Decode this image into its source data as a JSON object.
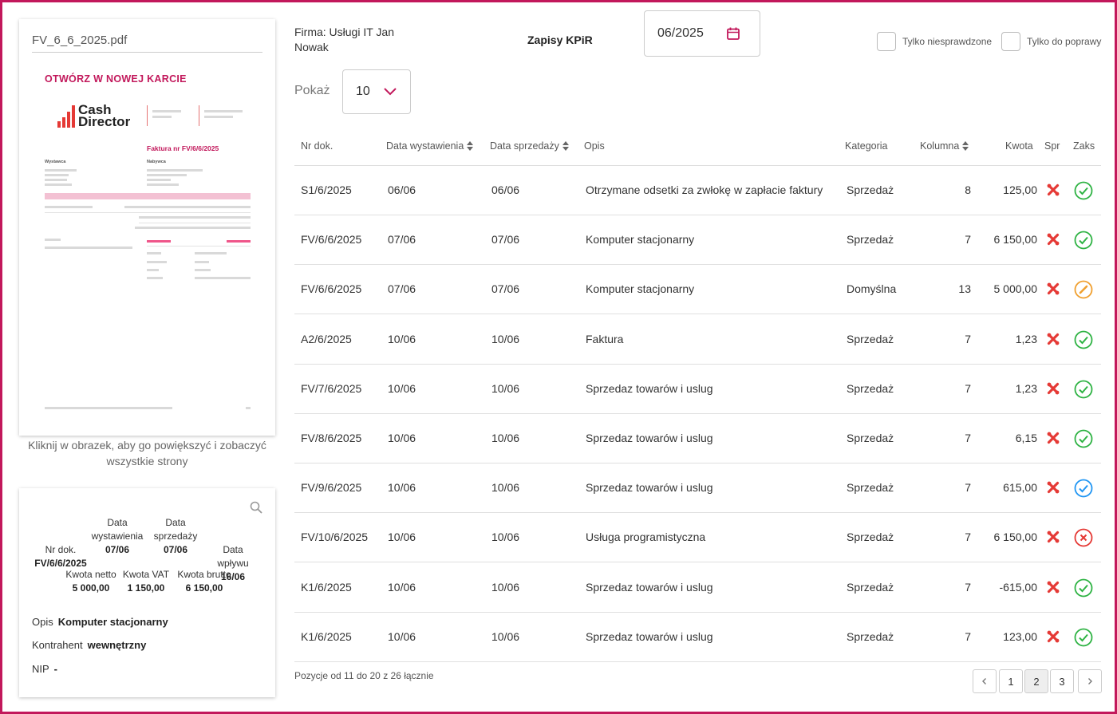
{
  "preview": {
    "filename": "FV_6_6_2025.pdf",
    "open_new_tab": "OTWÓRZ W NOWEJ KARCIE",
    "logo_line1": "Cash",
    "logo_line2": "Director",
    "invoice_title": "Faktura nr FV/6/6/2025",
    "seller_label": "Wystawca",
    "buyer_label": "Nabywca",
    "hint": "Kliknij w obrazek, aby go powiększyć i zobaczyć wszystkie strony"
  },
  "details": {
    "nr_label": "Nr dok.",
    "nr_value": "FV/6/6/2025",
    "issue_label": "Data wystawienia",
    "issue_value": "07/06",
    "sale_label": "Data sprzedaży",
    "sale_value": "07/06",
    "receipt_label": "Data wpływu",
    "receipt_value": "16/06",
    "net_label": "Kwota netto",
    "net_value": "5 000,00",
    "vat_label": "Kwota VAT",
    "vat_value": "1 150,00",
    "gross_label": "Kwota brutto",
    "gross_value": "6 150,00",
    "desc_label": "Opis",
    "desc_value": "Komputer stacjonarny",
    "contractor_label": "Kontrahent",
    "contractor_value": "wewnętrzny",
    "nip_label": "NIP",
    "nip_value": "-"
  },
  "header": {
    "firm": "Firma: Usługi IT Jan Nowak",
    "title": "Zapisy KPiR",
    "month": "06/2025",
    "filter_unchecked": "Tylko niesprawdzone",
    "filter_fix": "Tylko do poprawy",
    "show_label": "Pokaż",
    "show_value": "10"
  },
  "table": {
    "columns": {
      "nr": "Nr dok.",
      "issue": "Data wystawienia",
      "sale": "Data sprzedaży",
      "desc": "Opis",
      "category": "Kategoria",
      "column": "Kolumna",
      "amount": "Kwota",
      "check": "Spr",
      "booked": "Zaks"
    },
    "rows": [
      {
        "nr": "S1/6/2025",
        "issue": "06/06",
        "sale": "06/06",
        "desc": "Otrzymane odsetki za zwłokę w zapłacie faktury",
        "category": "Sprzedaż",
        "column": "8",
        "amount": "125,00",
        "status": "ok"
      },
      {
        "nr": "FV/6/6/2025",
        "issue": "07/06",
        "sale": "07/06",
        "desc": "Komputer stacjonarny",
        "category": "Sprzedaż",
        "column": "7",
        "amount": "6 150,00",
        "status": "ok"
      },
      {
        "nr": "FV/6/6/2025",
        "issue": "07/06",
        "sale": "07/06",
        "desc": "Komputer stacjonarny",
        "category": "Domyślna",
        "column": "13",
        "amount": "5 000,00",
        "status": "edit"
      },
      {
        "nr": "A2/6/2025",
        "issue": "10/06",
        "sale": "10/06",
        "desc": "Faktura",
        "category": "Sprzedaż",
        "column": "7",
        "amount": "1,23",
        "status": "ok"
      },
      {
        "nr": "FV/7/6/2025",
        "issue": "10/06",
        "sale": "10/06",
        "desc": "Sprzedaz towarów i uslug",
        "category": "Sprzedaż",
        "column": "7",
        "amount": "1,23",
        "status": "ok"
      },
      {
        "nr": "FV/8/6/2025",
        "issue": "10/06",
        "sale": "10/06",
        "desc": "Sprzedaz towarów i uslug",
        "category": "Sprzedaż",
        "column": "7",
        "amount": "6,15",
        "status": "ok"
      },
      {
        "nr": "FV/9/6/2025",
        "issue": "10/06",
        "sale": "10/06",
        "desc": "Sprzedaz towarów i uslug",
        "category": "Sprzedaż",
        "column": "7",
        "amount": "615,00",
        "status": "ok-blue"
      },
      {
        "nr": "FV/10/6/2025",
        "issue": "10/06",
        "sale": "10/06",
        "desc": "Usługa programistyczna",
        "category": "Sprzedaż",
        "column": "7",
        "amount": "6 150,00",
        "status": "error"
      },
      {
        "nr": "K1/6/2025",
        "issue": "10/06",
        "sale": "10/06",
        "desc": "Sprzedaz towarów i uslug",
        "category": "Sprzedaż",
        "column": "7",
        "amount": "-615,00",
        "status": "ok"
      },
      {
        "nr": "K1/6/2025",
        "issue": "10/06",
        "sale": "10/06",
        "desc": "Sprzedaz towarów i uslug",
        "category": "Sprzedaż",
        "column": "7",
        "amount": "123,00",
        "status": "ok"
      }
    ],
    "status_icons": {
      "ok": "check-circle-icon",
      "ok-blue": "check-circle-blue-icon",
      "edit": "pencil-circle-icon",
      "error": "x-circle-icon"
    }
  },
  "footer": {
    "range": "Pozycje od 11 do 20 z 26 łącznie",
    "pages": [
      "1",
      "2",
      "3"
    ],
    "active_page": "2"
  },
  "colors": {
    "accent": "#c2185b",
    "ok": "#2fb344",
    "ok_blue": "#2196f3",
    "edit": "#f0a030",
    "error": "#e53935"
  }
}
